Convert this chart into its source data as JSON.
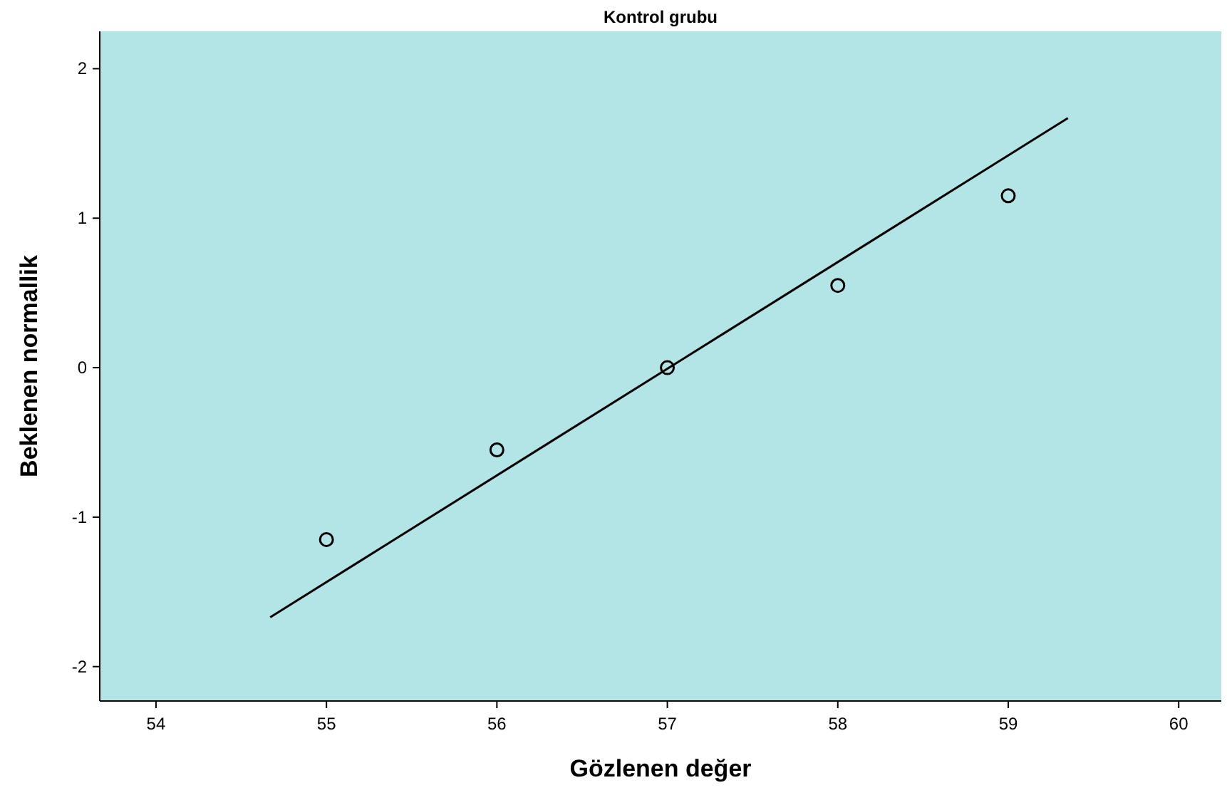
{
  "chart_data": {
    "type": "scatter",
    "title": "Kontrol grubu",
    "xlabel": "Gözlenen değer",
    "ylabel": "Beklenen normallik",
    "xlim": [
      53.67,
      60.25
    ],
    "xticks": [
      54,
      55,
      56,
      57,
      58,
      59,
      60
    ],
    "ylim": [
      -2.23,
      2.25
    ],
    "yticks": [
      -2,
      -1,
      0,
      1,
      2
    ],
    "grid": false,
    "series": [
      {
        "color": "#000000",
        "x": [
          55,
          56,
          57,
          58,
          59
        ],
        "values": [
          -1.15,
          -0.55,
          0,
          0.55,
          1.15
        ],
        "marker": "circle"
      },
      {
        "type": "line",
        "color": "#000000",
        "x": [
          54.67,
          59.35
        ],
        "values": [
          -1.67,
          1.67
        ],
        "line_style": "solid",
        "marker": "none"
      }
    ]
  }
}
